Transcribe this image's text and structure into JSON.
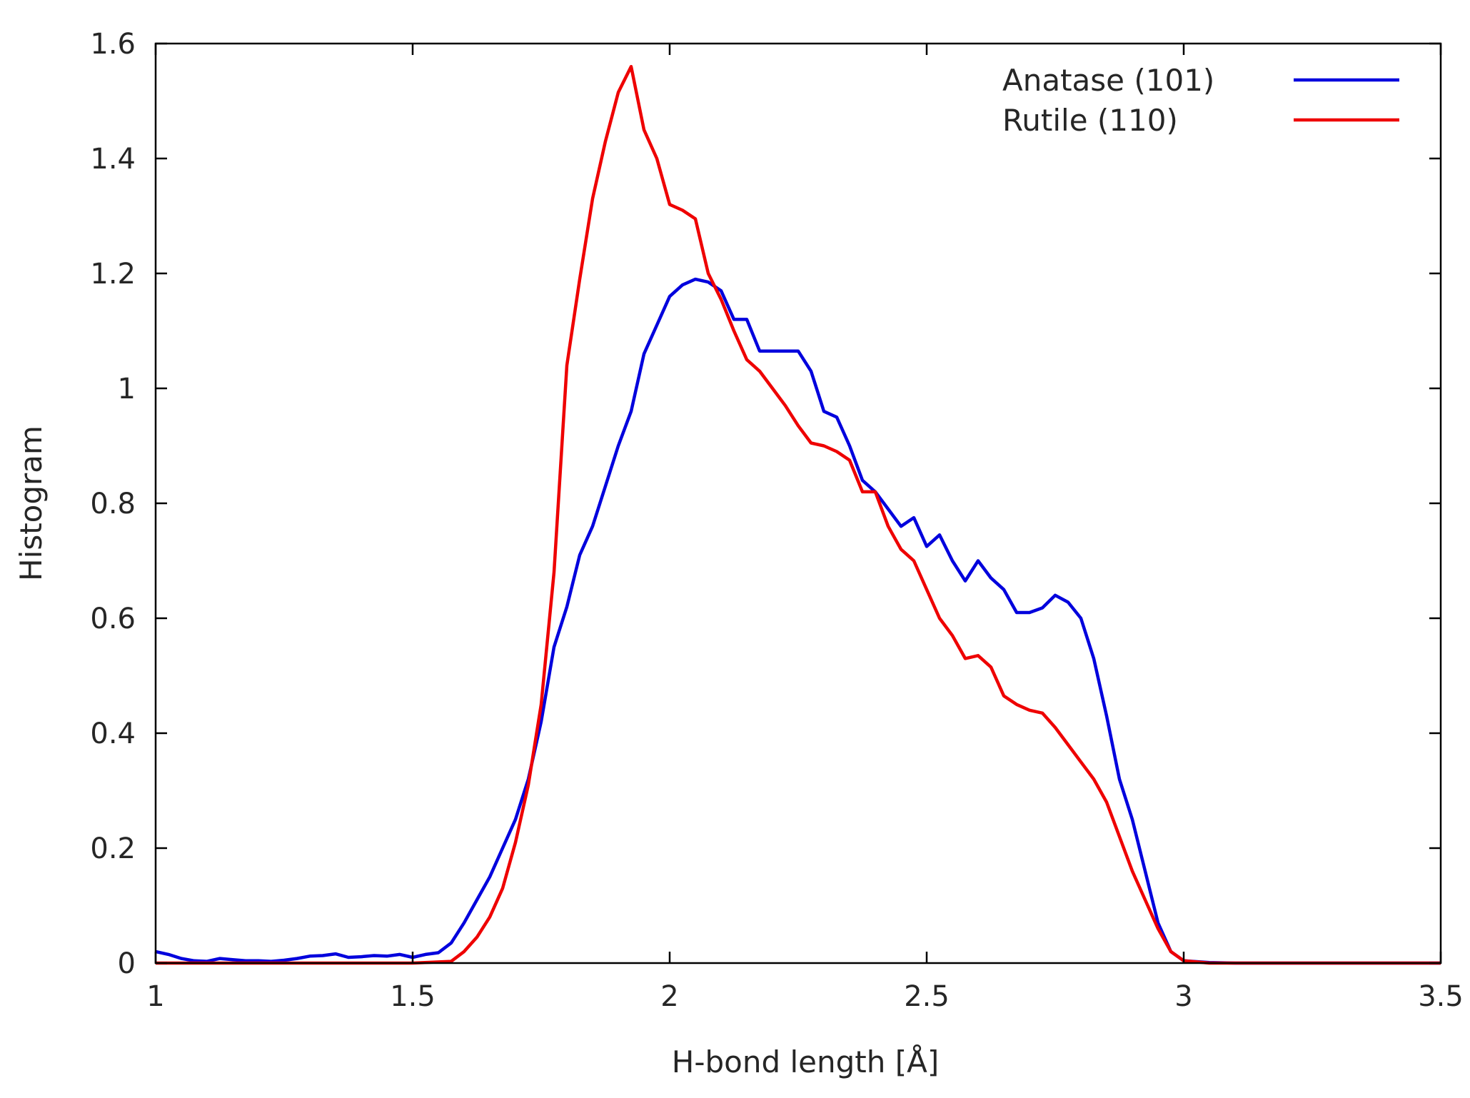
{
  "chart_data": {
    "type": "line",
    "title": "",
    "xlabel": "H-bond length [Å]",
    "ylabel": "Histogram",
    "xlim": [
      1,
      3.5
    ],
    "ylim": [
      0,
      1.6
    ],
    "xticks": [
      1,
      1.5,
      2,
      2.5,
      3,
      3.5
    ],
    "xtick_labels": [
      "1",
      "1.5",
      "2",
      "2.5",
      "3",
      "3.5"
    ],
    "yticks": [
      0,
      0.2,
      0.4,
      0.6,
      0.8,
      1,
      1.2,
      1.4,
      1.6
    ],
    "ytick_labels": [
      "0",
      "0.2",
      "0.4",
      "0.6",
      "0.8",
      "1",
      "1.2",
      "1.4",
      "1.6"
    ],
    "grid": false,
    "legend_position": "top-right",
    "series": [
      {
        "name": "Anatase (101)",
        "color": "#0000dd",
        "points": [
          [
            1.0,
            0.02
          ],
          [
            1.025,
            0.015
          ],
          [
            1.05,
            0.008
          ],
          [
            1.075,
            0.004
          ],
          [
            1.1,
            0.003
          ],
          [
            1.125,
            0.008
          ],
          [
            1.15,
            0.006
          ],
          [
            1.175,
            0.004
          ],
          [
            1.2,
            0.004
          ],
          [
            1.225,
            0.003
          ],
          [
            1.25,
            0.005
          ],
          [
            1.275,
            0.008
          ],
          [
            1.3,
            0.012
          ],
          [
            1.325,
            0.013
          ],
          [
            1.35,
            0.016
          ],
          [
            1.375,
            0.01
          ],
          [
            1.4,
            0.011
          ],
          [
            1.425,
            0.013
          ],
          [
            1.45,
            0.012
          ],
          [
            1.475,
            0.015
          ],
          [
            1.5,
            0.01
          ],
          [
            1.525,
            0.015
          ],
          [
            1.55,
            0.018
          ],
          [
            1.575,
            0.035
          ],
          [
            1.6,
            0.07
          ],
          [
            1.625,
            0.11
          ],
          [
            1.65,
            0.15
          ],
          [
            1.675,
            0.2
          ],
          [
            1.7,
            0.25
          ],
          [
            1.725,
            0.32
          ],
          [
            1.75,
            0.42
          ],
          [
            1.775,
            0.55
          ],
          [
            1.8,
            0.62
          ],
          [
            1.825,
            0.71
          ],
          [
            1.85,
            0.76
          ],
          [
            1.875,
            0.83
          ],
          [
            1.9,
            0.9
          ],
          [
            1.925,
            0.96
          ],
          [
            1.95,
            1.06
          ],
          [
            1.975,
            1.11
          ],
          [
            2.0,
            1.16
          ],
          [
            2.025,
            1.18
          ],
          [
            2.05,
            1.19
          ],
          [
            2.075,
            1.185
          ],
          [
            2.1,
            1.17
          ],
          [
            2.125,
            1.12
          ],
          [
            2.15,
            1.12
          ],
          [
            2.175,
            1.065
          ],
          [
            2.2,
            1.065
          ],
          [
            2.225,
            1.065
          ],
          [
            2.25,
            1.065
          ],
          [
            2.275,
            1.03
          ],
          [
            2.3,
            0.96
          ],
          [
            2.325,
            0.95
          ],
          [
            2.35,
            0.9
          ],
          [
            2.375,
            0.84
          ],
          [
            2.4,
            0.82
          ],
          [
            2.425,
            0.79
          ],
          [
            2.45,
            0.76
          ],
          [
            2.475,
            0.775
          ],
          [
            2.5,
            0.725
          ],
          [
            2.525,
            0.745
          ],
          [
            2.55,
            0.7
          ],
          [
            2.575,
            0.665
          ],
          [
            2.6,
            0.7
          ],
          [
            2.625,
            0.67
          ],
          [
            2.65,
            0.65
          ],
          [
            2.675,
            0.61
          ],
          [
            2.7,
            0.61
          ],
          [
            2.725,
            0.618
          ],
          [
            2.75,
            0.64
          ],
          [
            2.775,
            0.628
          ],
          [
            2.8,
            0.6
          ],
          [
            2.825,
            0.53
          ],
          [
            2.85,
            0.43
          ],
          [
            2.875,
            0.32
          ],
          [
            2.9,
            0.25
          ],
          [
            2.925,
            0.16
          ],
          [
            2.95,
            0.07
          ],
          [
            2.975,
            0.02
          ],
          [
            3.0,
            0.004
          ],
          [
            3.05,
            0.001
          ],
          [
            3.1,
            0.0
          ],
          [
            3.5,
            0.0
          ]
        ]
      },
      {
        "name": "Rutile (110)",
        "color": "#ee0000",
        "points": [
          [
            1.0,
            0.0
          ],
          [
            1.5,
            0.0
          ],
          [
            1.575,
            0.003
          ],
          [
            1.6,
            0.02
          ],
          [
            1.625,
            0.045
          ],
          [
            1.65,
            0.08
          ],
          [
            1.675,
            0.13
          ],
          [
            1.7,
            0.21
          ],
          [
            1.725,
            0.31
          ],
          [
            1.75,
            0.45
          ],
          [
            1.775,
            0.68
          ],
          [
            1.8,
            1.04
          ],
          [
            1.825,
            1.19
          ],
          [
            1.85,
            1.33
          ],
          [
            1.875,
            1.43
          ],
          [
            1.9,
            1.515
          ],
          [
            1.925,
            1.56
          ],
          [
            1.95,
            1.45
          ],
          [
            1.975,
            1.4
          ],
          [
            2.0,
            1.32
          ],
          [
            2.025,
            1.31
          ],
          [
            2.05,
            1.295
          ],
          [
            2.075,
            1.2
          ],
          [
            2.1,
            1.155
          ],
          [
            2.125,
            1.1
          ],
          [
            2.15,
            1.05
          ],
          [
            2.175,
            1.03
          ],
          [
            2.2,
            1.0
          ],
          [
            2.225,
            0.97
          ],
          [
            2.25,
            0.935
          ],
          [
            2.275,
            0.905
          ],
          [
            2.3,
            0.9
          ],
          [
            2.325,
            0.89
          ],
          [
            2.35,
            0.875
          ],
          [
            2.375,
            0.82
          ],
          [
            2.4,
            0.82
          ],
          [
            2.425,
            0.76
          ],
          [
            2.45,
            0.72
          ],
          [
            2.475,
            0.7
          ],
          [
            2.5,
            0.65
          ],
          [
            2.525,
            0.6
          ],
          [
            2.55,
            0.57
          ],
          [
            2.575,
            0.53
          ],
          [
            2.6,
            0.535
          ],
          [
            2.625,
            0.515
          ],
          [
            2.65,
            0.465
          ],
          [
            2.675,
            0.45
          ],
          [
            2.7,
            0.44
          ],
          [
            2.725,
            0.435
          ],
          [
            2.75,
            0.41
          ],
          [
            2.775,
            0.38
          ],
          [
            2.8,
            0.35
          ],
          [
            2.825,
            0.32
          ],
          [
            2.85,
            0.28
          ],
          [
            2.875,
            0.22
          ],
          [
            2.9,
            0.16
          ],
          [
            2.925,
            0.11
          ],
          [
            2.95,
            0.06
          ],
          [
            2.975,
            0.02
          ],
          [
            3.0,
            0.004
          ],
          [
            3.05,
            0.0
          ],
          [
            3.5,
            0.0
          ]
        ]
      }
    ]
  }
}
